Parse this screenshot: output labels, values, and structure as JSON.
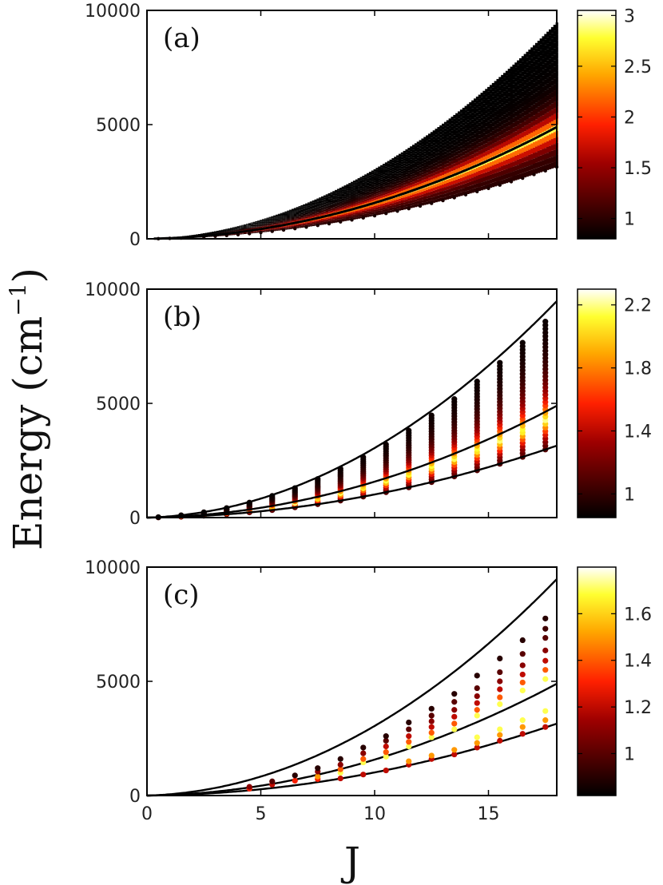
{
  "figure": {
    "ylabel_main": "Energy (cm",
    "ylabel_sup": "−1",
    "ylabel_close": ")",
    "xlabel": "J"
  },
  "chart_data": [
    {
      "type": "heatmap",
      "panel_label": "(a)",
      "xlim": [
        0,
        18
      ],
      "ylim": [
        0,
        10000
      ],
      "yticks": [
        0,
        5000,
        10000
      ],
      "ytick_labels": [
        "0",
        "5000",
        "10000"
      ],
      "xticks": [
        0,
        5,
        10,
        15
      ],
      "xtick_labels": [],
      "show_x_tick_labels": false,
      "colorbar": {
        "min": 0.8,
        "max": 3.05,
        "ticks": [
          1,
          1.5,
          2,
          2.5,
          3
        ],
        "tick_labels": [
          "1",
          "1.5",
          "2",
          "2.5",
          "3"
        ]
      },
      "band": {
        "J_min": 0.5,
        "J_max": 18,
        "lower_curve": "9.2*J*(J+1)",
        "upper_curve": "27.7*J*(J+1)",
        "peak_curve": "14.3*J*(J+1)"
      },
      "reference_curves": [
        {
          "name": "middle",
          "formula": "14.3*J*(J+1)"
        }
      ]
    },
    {
      "type": "scatter",
      "panel_label": "(b)",
      "xlim": [
        0,
        18
      ],
      "ylim": [
        0,
        10000
      ],
      "yticks": [
        0,
        5000,
        10000
      ],
      "ytick_labels": [
        "0",
        "5000",
        "10000"
      ],
      "xticks": [
        0,
        5,
        10,
        15
      ],
      "xtick_labels": [],
      "show_x_tick_labels": false,
      "colorbar": {
        "min": 0.85,
        "max": 2.3,
        "ticks": [
          1,
          1.4,
          1.8,
          2.2
        ],
        "tick_labels": [
          "1",
          "1.4",
          "1.8",
          "2.2"
        ]
      },
      "points_per_column": "2*J+1 (J half-integer)",
      "J_values": [
        0.5,
        1.5,
        2.5,
        3.5,
        4.5,
        5.5,
        6.5,
        7.5,
        8.5,
        9.5,
        10.5,
        11.5,
        12.5,
        13.5,
        14.5,
        15.5,
        16.5,
        17.5
      ],
      "energy_range_per_J": {
        "lower": "9.2*J*(J+1)",
        "upper": "26.5*J*(J+1)"
      },
      "reference_curves": [
        {
          "name": "upper",
          "formula": "27.7*J*(J+1)"
        },
        {
          "name": "middle",
          "formula": "14.3*J*(J+1)"
        },
        {
          "name": "lower",
          "formula": "9.2*J*(J+1)"
        }
      ]
    },
    {
      "type": "scatter",
      "panel_label": "(c)",
      "xlim": [
        0,
        18
      ],
      "ylim": [
        0,
        10000
      ],
      "yticks": [
        0,
        5000,
        10000
      ],
      "ytick_labels": [
        "0",
        "5000",
        "10000"
      ],
      "xticks": [
        0,
        5,
        10,
        15
      ],
      "xtick_labels": [
        "0",
        "5",
        "10",
        "15"
      ],
      "show_x_tick_labels": true,
      "colorbar": {
        "min": 0.82,
        "max": 1.8,
        "ticks": [
          1,
          1.2,
          1.4,
          1.6
        ],
        "tick_labels": [
          "1",
          "1.2",
          "1.4",
          "1.6"
        ]
      },
      "points": [
        {
          "J": 4.5,
          "E": 300,
          "c": 1.3
        },
        {
          "J": 4.5,
          "E": 380,
          "c": 1.1
        },
        {
          "J": 5.5,
          "E": 480,
          "c": 1.2
        },
        {
          "J": 5.5,
          "E": 620,
          "c": 1.0
        },
        {
          "J": 6.5,
          "E": 650,
          "c": 1.3
        },
        {
          "J": 6.5,
          "E": 880,
          "c": 0.9
        },
        {
          "J": 7.5,
          "E": 720,
          "c": 1.3
        },
        {
          "J": 7.5,
          "E": 830,
          "c": 1.5
        },
        {
          "J": 7.5,
          "E": 1050,
          "c": 1.1
        },
        {
          "J": 7.5,
          "E": 1200,
          "c": 0.9
        },
        {
          "J": 8.5,
          "E": 750,
          "c": 1.2
        },
        {
          "J": 8.5,
          "E": 1000,
          "c": 1.7
        },
        {
          "J": 8.5,
          "E": 1150,
          "c": 1.4
        },
        {
          "J": 8.5,
          "E": 1350,
          "c": 1.1
        },
        {
          "J": 8.5,
          "E": 1600,
          "c": 0.9
        },
        {
          "J": 9.5,
          "E": 920,
          "c": 1.2
        },
        {
          "J": 9.5,
          "E": 1450,
          "c": 1.7
        },
        {
          "J": 9.5,
          "E": 1600,
          "c": 1.4
        },
        {
          "J": 9.5,
          "E": 1850,
          "c": 1.1
        },
        {
          "J": 9.5,
          "E": 2100,
          "c": 0.9
        },
        {
          "J": 10.5,
          "E": 1100,
          "c": 1.2
        },
        {
          "J": 10.5,
          "E": 1700,
          "c": 1.7
        },
        {
          "J": 10.5,
          "E": 1900,
          "c": 1.4
        },
        {
          "J": 10.5,
          "E": 2150,
          "c": 1.2
        },
        {
          "J": 10.5,
          "E": 2400,
          "c": 1.0
        },
        {
          "J": 10.5,
          "E": 2600,
          "c": 0.9
        },
        {
          "J": 11.5,
          "E": 1350,
          "c": 1.2
        },
        {
          "J": 11.5,
          "E": 1500,
          "c": 1.5
        },
        {
          "J": 11.5,
          "E": 2150,
          "c": 1.7
        },
        {
          "J": 11.5,
          "E": 2350,
          "c": 1.4
        },
        {
          "J": 11.5,
          "E": 2600,
          "c": 1.2
        },
        {
          "J": 11.5,
          "E": 2900,
          "c": 1.0
        },
        {
          "J": 11.5,
          "E": 3200,
          "c": 0.9
        },
        {
          "J": 12.5,
          "E": 1600,
          "c": 1.2
        },
        {
          "J": 12.5,
          "E": 1750,
          "c": 1.5
        },
        {
          "J": 12.5,
          "E": 2550,
          "c": 1.7
        },
        {
          "J": 12.5,
          "E": 2750,
          "c": 1.4
        },
        {
          "J": 12.5,
          "E": 3000,
          "c": 1.2
        },
        {
          "J": 12.5,
          "E": 3250,
          "c": 1.1
        },
        {
          "J": 12.5,
          "E": 3500,
          "c": 1.0
        },
        {
          "J": 12.5,
          "E": 3800,
          "c": 0.9
        },
        {
          "J": 13.5,
          "E": 1800,
          "c": 1.2
        },
        {
          "J": 13.5,
          "E": 2000,
          "c": 1.5
        },
        {
          "J": 13.5,
          "E": 2900,
          "c": 1.7
        },
        {
          "J": 13.5,
          "E": 3150,
          "c": 1.4
        },
        {
          "J": 13.5,
          "E": 3450,
          "c": 1.2
        },
        {
          "J": 13.5,
          "E": 3750,
          "c": 1.1
        },
        {
          "J": 13.5,
          "E": 4100,
          "c": 1.0
        },
        {
          "J": 13.5,
          "E": 4450,
          "c": 0.9
        },
        {
          "J": 14.5,
          "E": 2100,
          "c": 1.2
        },
        {
          "J": 14.5,
          "E": 2300,
          "c": 1.5
        },
        {
          "J": 14.5,
          "E": 2550,
          "c": 1.7
        },
        {
          "J": 14.5,
          "E": 3500,
          "c": 1.7
        },
        {
          "J": 14.5,
          "E": 3750,
          "c": 1.4
        },
        {
          "J": 14.5,
          "E": 4050,
          "c": 1.2
        },
        {
          "J": 14.5,
          "E": 4350,
          "c": 1.1
        },
        {
          "J": 14.5,
          "E": 4700,
          "c": 1.0
        },
        {
          "J": 14.5,
          "E": 5250,
          "c": 0.9
        },
        {
          "J": 15.5,
          "E": 2400,
          "c": 1.2
        },
        {
          "J": 15.5,
          "E": 2650,
          "c": 1.5
        },
        {
          "J": 15.5,
          "E": 2900,
          "c": 1.7
        },
        {
          "J": 15.5,
          "E": 4000,
          "c": 1.7
        },
        {
          "J": 15.5,
          "E": 4300,
          "c": 1.4
        },
        {
          "J": 15.5,
          "E": 4650,
          "c": 1.2
        },
        {
          "J": 15.5,
          "E": 5000,
          "c": 1.1
        },
        {
          "J": 15.5,
          "E": 5400,
          "c": 1.0
        },
        {
          "J": 15.5,
          "E": 6000,
          "c": 0.9
        },
        {
          "J": 16.5,
          "E": 2700,
          "c": 1.2
        },
        {
          "J": 16.5,
          "E": 3000,
          "c": 1.5
        },
        {
          "J": 16.5,
          "E": 3300,
          "c": 1.7
        },
        {
          "J": 16.5,
          "E": 4600,
          "c": 1.7
        },
        {
          "J": 16.5,
          "E": 4950,
          "c": 1.4
        },
        {
          "J": 16.5,
          "E": 5300,
          "c": 1.2
        },
        {
          "J": 16.5,
          "E": 5700,
          "c": 1.1
        },
        {
          "J": 16.5,
          "E": 6200,
          "c": 1.0
        },
        {
          "J": 16.5,
          "E": 6800,
          "c": 0.9
        },
        {
          "J": 17.5,
          "E": 3000,
          "c": 1.2
        },
        {
          "J": 17.5,
          "E": 3300,
          "c": 1.5
        },
        {
          "J": 17.5,
          "E": 3700,
          "c": 1.7
        },
        {
          "J": 17.5,
          "E": 5100,
          "c": 1.7
        },
        {
          "J": 17.5,
          "E": 5500,
          "c": 1.4
        },
        {
          "J": 17.5,
          "E": 5900,
          "c": 1.2
        },
        {
          "J": 17.5,
          "E": 6350,
          "c": 1.1
        },
        {
          "J": 17.5,
          "E": 6900,
          "c": 1.0
        },
        {
          "J": 17.5,
          "E": 7300,
          "c": 0.95
        },
        {
          "J": 17.5,
          "E": 7750,
          "c": 0.9
        }
      ],
      "reference_curves": [
        {
          "name": "upper",
          "formula": "27.7*J*(J+1)"
        },
        {
          "name": "middle",
          "formula": "14.3*J*(J+1)"
        },
        {
          "name": "lower",
          "formula": "9.2*J*(J+1)"
        }
      ]
    }
  ]
}
